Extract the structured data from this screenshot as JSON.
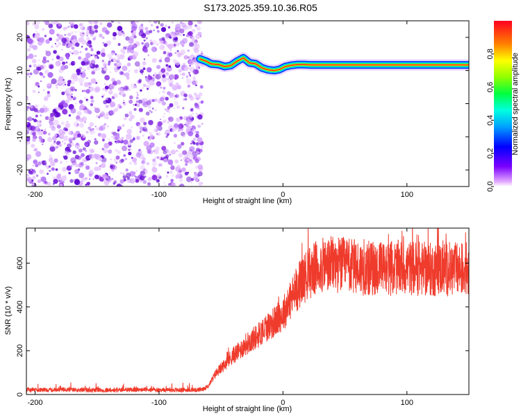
{
  "title": "S173.2025.359.10.36.R05",
  "chart_data": [
    {
      "type": "heatmap",
      "name": "spectrogram",
      "xlabel": "Height of straight line (km)",
      "ylabel": "Frequency (Hz)",
      "xlim": [
        -207,
        150
      ],
      "ylim": [
        -25,
        25
      ],
      "xticks": [
        -200,
        -100,
        0,
        100
      ],
      "yticks": [
        -20,
        -10,
        0,
        10,
        20
      ],
      "noise_region_x": [
        -207,
        -65
      ],
      "trace": {
        "x": [
          -67,
          -62,
          -58,
          -52,
          -47,
          -42,
          -37,
          -32,
          -27,
          -22,
          -17,
          -12,
          -7,
          -3,
          2,
          7,
          12,
          17,
          22,
          150
        ],
        "y": [
          13.5,
          12.8,
          12.0,
          11.8,
          11.2,
          11.5,
          12.8,
          13.8,
          12.3,
          12.0,
          10.8,
          10.2,
          10.0,
          10.3,
          11.2,
          11.6,
          11.8,
          11.8,
          11.7,
          11.7
        ]
      },
      "colorbar": {
        "label": "Normalized spectral amplitude",
        "ticks": [
          "0.0",
          "0.2",
          "0.4",
          "0.6",
          "0.8"
        ],
        "range": [
          0,
          1
        ]
      }
    },
    {
      "type": "line",
      "name": "snr",
      "xlabel": "Height of straight line (km)",
      "ylabel": "SNR (10 * v/v)",
      "xlim": [
        -207,
        150
      ],
      "ylim": [
        0,
        760
      ],
      "xticks": [
        -200,
        -100,
        0,
        100
      ],
      "yticks": [
        0,
        200,
        400,
        600
      ],
      "series": [
        {
          "name": "SNR",
          "color": "#ef3b2c",
          "x": [
            -207,
            -180,
            -150,
            -120,
            -90,
            -65,
            -60,
            -55,
            -50,
            -45,
            -40,
            -35,
            -30,
            -25,
            -20,
            -15,
            -10,
            -5,
            0,
            5,
            10,
            15,
            20,
            25,
            30,
            40,
            50,
            60,
            70,
            80,
            90,
            100,
            110,
            120,
            130,
            140,
            150
          ],
          "values": [
            20,
            22,
            20,
            22,
            20,
            22,
            40,
            90,
            120,
            150,
            180,
            200,
            230,
            250,
            270,
            300,
            320,
            340,
            370,
            420,
            470,
            520,
            550,
            570,
            585,
            595,
            590,
            580,
            575,
            575,
            578,
            580,
            575,
            570,
            575,
            570,
            575
          ]
        }
      ]
    }
  ]
}
